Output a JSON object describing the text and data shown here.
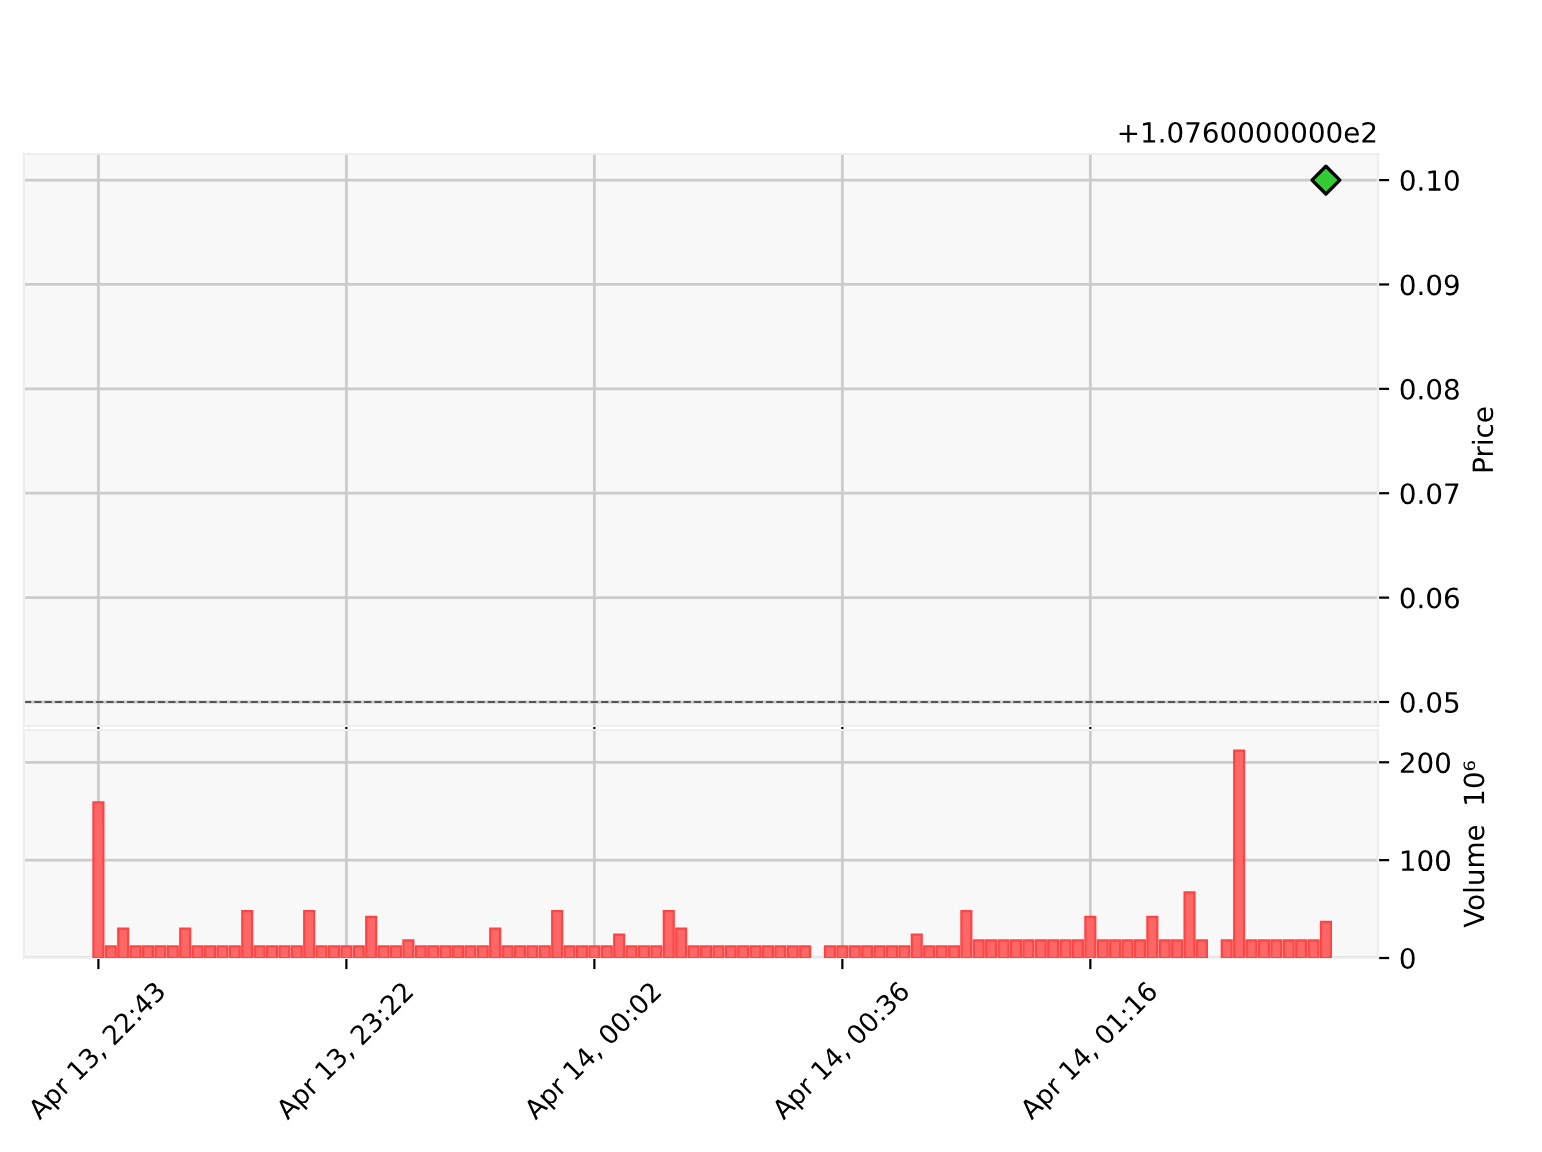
{
  "chart_data": [
    {
      "type": "scatter",
      "ylabel": "Price",
      "annotations": [
        "+1.0760000000e2"
      ],
      "categories": [
        "Apr 13, 22:43",
        null,
        null,
        null,
        null,
        null,
        null,
        null,
        null,
        null,
        null,
        null,
        null,
        null,
        null,
        null,
        null,
        null,
        null,
        null,
        "Apr 13, 23:22",
        null,
        null,
        null,
        null,
        null,
        null,
        null,
        null,
        null,
        null,
        null,
        null,
        null,
        null,
        null,
        null,
        null,
        null,
        null,
        "Apr 14, 00:02",
        null,
        null,
        null,
        null,
        null,
        null,
        null,
        null,
        null,
        null,
        null,
        null,
        null,
        null,
        null,
        null,
        null,
        null,
        null,
        "Apr 14, 00:36",
        null,
        null,
        null,
        null,
        null,
        null,
        null,
        null,
        null,
        null,
        null,
        null,
        null,
        null,
        null,
        null,
        null,
        null,
        null,
        "Apr 14, 01:16",
        null,
        null,
        null,
        null,
        null,
        null,
        null,
        null,
        null,
        null,
        null,
        null,
        null,
        null,
        null,
        null,
        null,
        null,
        null
      ],
      "series": [
        {
          "type": "scatter",
          "color": "#33cc33",
          "values": [
            null,
            null,
            null,
            null,
            null,
            null,
            null,
            null,
            null,
            null,
            null,
            null,
            null,
            null,
            null,
            null,
            null,
            null,
            null,
            null,
            null,
            null,
            null,
            null,
            null,
            null,
            null,
            null,
            null,
            null,
            null,
            null,
            null,
            null,
            null,
            null,
            null,
            null,
            null,
            null,
            null,
            null,
            null,
            null,
            null,
            null,
            null,
            null,
            null,
            null,
            null,
            null,
            null,
            null,
            null,
            null,
            null,
            null,
            null,
            null,
            null,
            null,
            null,
            null,
            null,
            null,
            null,
            null,
            null,
            null,
            null,
            null,
            null,
            null,
            null,
            null,
            null,
            null,
            null,
            null,
            null,
            null,
            null,
            null,
            null,
            null,
            null,
            null,
            null,
            null,
            null,
            null,
            null,
            null,
            null,
            null,
            null,
            null,
            null,
            0.1
          ]
        }
      ],
      "marker": "diamond",
      "ylim": [
        0.0477,
        0.1025
      ],
      "yticks": [
        0.05,
        0.06,
        0.07,
        0.08,
        0.09,
        {
          "value": 0.1,
          "label": "0.10"
        }
      ],
      "ref_lines": [
        {
          "axis": "y",
          "value": 0.05,
          "label": null,
          "color": "#555555",
          "line_style": "dashed"
        }
      ],
      "grid": true,
      "tick_labels": "y"
    },
    {
      "type": "bar",
      "ylabel": "Volume  10⁶",
      "categories": [
        "Apr 13, 22:43",
        null,
        null,
        null,
        null,
        null,
        null,
        null,
        null,
        null,
        null,
        null,
        null,
        null,
        null,
        null,
        null,
        null,
        null,
        null,
        "Apr 13, 23:22",
        null,
        null,
        null,
        null,
        null,
        null,
        null,
        null,
        null,
        null,
        null,
        null,
        null,
        null,
        null,
        null,
        null,
        null,
        null,
        "Apr 14, 00:02",
        null,
        null,
        null,
        null,
        null,
        null,
        null,
        null,
        null,
        null,
        null,
        null,
        null,
        null,
        null,
        null,
        null,
        null,
        null,
        "Apr 14, 00:36",
        null,
        null,
        null,
        null,
        null,
        null,
        null,
        null,
        null,
        null,
        null,
        null,
        null,
        null,
        null,
        null,
        null,
        null,
        null,
        "Apr 14, 01:16",
        null,
        null,
        null,
        null,
        null,
        null,
        null,
        null,
        null,
        null,
        null,
        null,
        null,
        null,
        null,
        null,
        null,
        null,
        null
      ],
      "series": [
        {
          "color": "#ff6666",
          "values": [
            159,
            12,
            30,
            12,
            12,
            12,
            12,
            30,
            12,
            12,
            12,
            12,
            48,
            12,
            12,
            12,
            12,
            48,
            12,
            12,
            12,
            12,
            42,
            12,
            12,
            18,
            12,
            12,
            12,
            12,
            12,
            12,
            30,
            12,
            12,
            12,
            12,
            48,
            12,
            12,
            12,
            12,
            24,
            12,
            12,
            12,
            48,
            30,
            12,
            12,
            12,
            12,
            12,
            12,
            12,
            12,
            12,
            12,
            null,
            12,
            12,
            12,
            12,
            12,
            12,
            12,
            24,
            12,
            12,
            12,
            48,
            18,
            18,
            18,
            18,
            18,
            18,
            18,
            18,
            18,
            42,
            18,
            18,
            18,
            18,
            42,
            18,
            18,
            67,
            18,
            null,
            18,
            212,
            18,
            18,
            18,
            18,
            18,
            18,
            37
          ]
        }
      ],
      "ylim": [
        0,
        233
      ],
      "yticks": [
        0,
        100,
        200
      ],
      "grid": true
    }
  ]
}
